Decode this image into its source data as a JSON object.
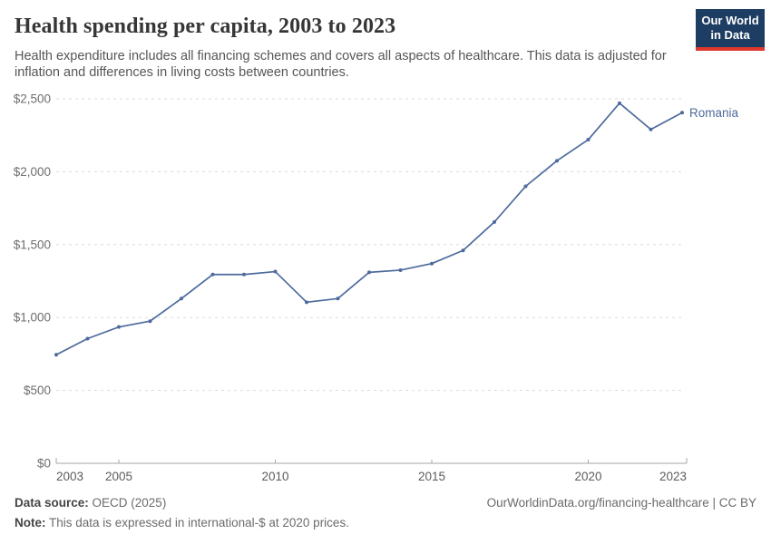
{
  "header": {
    "title": "Health spending per capita, 2003 to 2023",
    "subtitle": "Health expenditure includes all financing schemes and covers all aspects of healthcare. This data is adjusted for inflation and differences in living costs between countries.",
    "logo": {
      "line1": "Our World",
      "line2": "in Data",
      "bg_color": "#1d3d63",
      "accent_color": "#e0372e"
    }
  },
  "chart_data": {
    "type": "line",
    "title": "Health spending per capita, 2003 to 2023",
    "xlabel": "",
    "ylabel": "",
    "xlim": [
      2003,
      2023
    ],
    "ylim": [
      0,
      2500
    ],
    "grid": "horizontal dashed",
    "legend_position": "end-of-line label",
    "x_ticks": [
      2003,
      2005,
      2010,
      2015,
      2020,
      2023
    ],
    "y_ticks": [
      {
        "value": 0,
        "label": "$0"
      },
      {
        "value": 500,
        "label": "$500"
      },
      {
        "value": 1000,
        "label": "$1,000"
      },
      {
        "value": 1500,
        "label": "$1,500"
      },
      {
        "value": 2000,
        "label": "$2,000"
      },
      {
        "value": 2500,
        "label": "$2,500"
      }
    ],
    "series": [
      {
        "name": "Romania",
        "color": "#4C6A9C",
        "x": [
          2003,
          2004,
          2005,
          2006,
          2007,
          2008,
          2009,
          2010,
          2011,
          2012,
          2013,
          2014,
          2015,
          2016,
          2017,
          2018,
          2019,
          2020,
          2021,
          2022,
          2023
        ],
        "values": [
          745,
          855,
          935,
          975,
          1130,
          1295,
          1295,
          1315,
          1105,
          1130,
          1310,
          1325,
          1370,
          1460,
          1655,
          1900,
          2075,
          2220,
          2470,
          2290,
          2405
        ]
      }
    ],
    "colors": {
      "gridline": "#dadada",
      "axis": "#a5a5a5",
      "tick": "#a5a5a5",
      "y_tick_label": "#6e6e6e",
      "x_tick_label": "#5c5c5c"
    }
  },
  "footer": {
    "datasource_label": "Data source:",
    "datasource_value": " OECD (2025)",
    "note_label": "Note:",
    "note_value": " This data is expressed in international-$ at 2020 prices.",
    "citation": "OurWorldinData.org/financing-healthcare | CC BY"
  }
}
